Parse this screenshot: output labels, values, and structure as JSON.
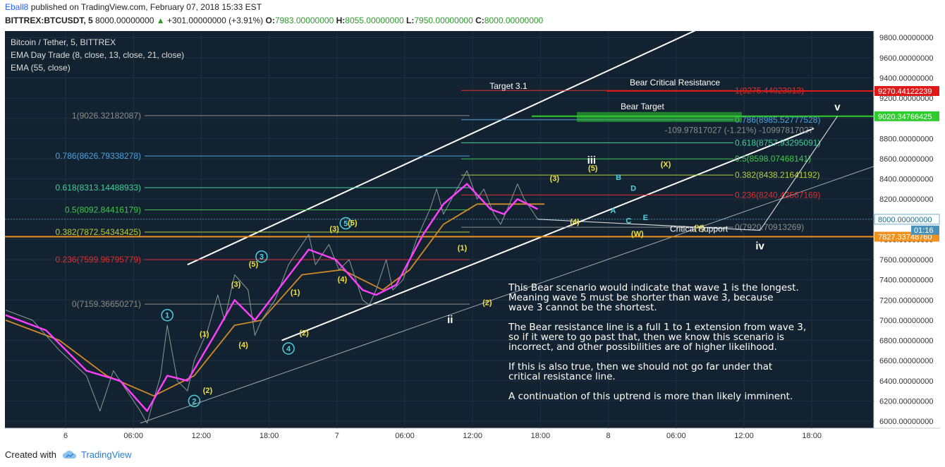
{
  "header": {
    "author": "Eball8",
    "published": "published on TradingView.com, February 07, 2018 15:33 EST",
    "symbol": "BITTREX:BTCUSDT, 5",
    "last": "8000.00000000",
    "change": "+301.00000000 (+3.91%)",
    "o_label": "O:",
    "o": "7983.00000000",
    "h_label": "H:",
    "h": "8055.00000000",
    "l_label": "L:",
    "l": "7950.00000000",
    "c_label": "C:",
    "c": "8000.00000000"
  },
  "legend": {
    "title": "Bitcoin / Tether, 5, BITTREX",
    "ema1": "EMA Day Trade (8, close, 13, close, 21, close)",
    "ema2": "EMA (55, close)"
  },
  "footer": {
    "created_with": "Created with",
    "brand": "TradingView"
  },
  "colors": {
    "background": "#132230",
    "grid": "#1f3142",
    "text": "#d8d8d8",
    "channel": "#ffffff",
    "ema_fast": "#b020c0",
    "ema_mid": "#ff40ff",
    "ema_slow": "#d08a2a",
    "price": "#8a9a9a",
    "resistance": "#e01818",
    "bear_target": "#2ecc2e",
    "support": "#f0921e"
  },
  "notes": {
    "p1": "This Bear scenario would indicate that wave 1 is the longest.\nMeaning wave 5 must be shorter than wave 3, because\nwave 3 cannot be the shortest.",
    "p2": "The Bear resistance line is a full 1 to 1 extension from wave 3,\nso if it were to go past that, then we know this scenario is\nincorrect, and other possibilities are of higher likelihood.",
    "p3": "If this is also true, then we should not go far under that\ncritical resistance line.",
    "p4": "A continuation of this uptrend is more than likely imminent."
  },
  "chart_data": {
    "type": "line",
    "title": "Bitcoin / Tether, 5, BITTREX",
    "ylim": [
      5950,
      9950
    ],
    "y_ticks": [
      "9800.00000000",
      "9600.00000000",
      "9400.00000000",
      "9200.00000000",
      "9000.00000000",
      "8800.00000000",
      "8600.00000000",
      "8400.00000000",
      "8200.00000000",
      "8000.00000000",
      "7800.00000000",
      "7600.00000000",
      "7400.00000000",
      "7200.00000000",
      "7000.00000000",
      "6800.00000000",
      "6600.00000000",
      "6400.00000000",
      "6200.00000000",
      "6000.00000000"
    ],
    "x_ticks": [
      "6",
      "06:00",
      "12:00",
      "18:00",
      "7",
      "06:00",
      "12:00",
      "18:00",
      "8",
      "06:00",
      "12:00",
      "18:00"
    ],
    "grid": true,
    "price_series": [
      {
        "t": 0,
        "p": 7100
      },
      {
        "t": 4,
        "p": 7000
      },
      {
        "t": 8,
        "p": 6700
      },
      {
        "t": 12,
        "p": 6450
      },
      {
        "t": 14,
        "p": 6100
      },
      {
        "t": 16,
        "p": 6500
      },
      {
        "t": 18,
        "p": 6300
      },
      {
        "t": 20,
        "p": 6100
      },
      {
        "t": 21,
        "p": 5980
      },
      {
        "t": 23,
        "p": 6450
      },
      {
        "t": 24,
        "p": 6950
      },
      {
        "t": 25.5,
        "p": 6400
      },
      {
        "t": 27,
        "p": 6300
      },
      {
        "t": 28,
        "p": 6600
      },
      {
        "t": 30,
        "p": 6900
      },
      {
        "t": 31.5,
        "p": 7250
      },
      {
        "t": 32.5,
        "p": 7000
      },
      {
        "t": 34,
        "p": 7450
      },
      {
        "t": 36,
        "p": 7300
      },
      {
        "t": 37,
        "p": 6850
      },
      {
        "t": 38,
        "p": 7000
      },
      {
        "t": 40,
        "p": 7200
      },
      {
        "t": 42,
        "p": 7550
      },
      {
        "t": 44,
        "p": 7750
      },
      {
        "t": 45,
        "p": 7850
      },
      {
        "t": 46,
        "p": 7550
      },
      {
        "t": 48,
        "p": 7750
      },
      {
        "t": 49.5,
        "p": 7500
      },
      {
        "t": 51,
        "p": 7600
      },
      {
        "t": 53,
        "p": 7200
      },
      {
        "t": 54,
        "p": 7150
      },
      {
        "t": 55,
        "p": 7300
      },
      {
        "t": 56.5,
        "p": 7600
      },
      {
        "t": 57.5,
        "p": 7300
      },
      {
        "t": 59,
        "p": 7400
      },
      {
        "t": 61,
        "p": 7800
      },
      {
        "t": 63,
        "p": 8100
      },
      {
        "t": 64,
        "p": 8300
      },
      {
        "t": 65,
        "p": 8050
      },
      {
        "t": 67,
        "p": 8300
      },
      {
        "t": 68.5,
        "p": 8480
      },
      {
        "t": 70,
        "p": 8200
      },
      {
        "t": 71,
        "p": 8300
      },
      {
        "t": 72.5,
        "p": 8050
      },
      {
        "t": 73.5,
        "p": 7950
      },
      {
        "t": 74.5,
        "p": 8100
      },
      {
        "t": 76,
        "p": 8350
      },
      {
        "t": 77,
        "p": 8200
      },
      {
        "t": 78.5,
        "p": 8050
      },
      {
        "t": 79,
        "p": 8000
      }
    ],
    "ema_series": [
      {
        "t": 0,
        "p": 7050
      },
      {
        "t": 6,
        "p": 6900
      },
      {
        "t": 12,
        "p": 6500
      },
      {
        "t": 17,
        "p": 6400
      },
      {
        "t": 21,
        "p": 6100
      },
      {
        "t": 24,
        "p": 6450
      },
      {
        "t": 27,
        "p": 6400
      },
      {
        "t": 31,
        "p": 6850
      },
      {
        "t": 34,
        "p": 7200
      },
      {
        "t": 37,
        "p": 7000
      },
      {
        "t": 41,
        "p": 7350
      },
      {
        "t": 45,
        "p": 7700
      },
      {
        "t": 49,
        "p": 7600
      },
      {
        "t": 53,
        "p": 7300
      },
      {
        "t": 55,
        "p": 7250
      },
      {
        "t": 58,
        "p": 7350
      },
      {
        "t": 62,
        "p": 7850
      },
      {
        "t": 65,
        "p": 8150
      },
      {
        "t": 68.5,
        "p": 8350
      },
      {
        "t": 72,
        "p": 8100
      },
      {
        "t": 74,
        "p": 8050
      },
      {
        "t": 76,
        "p": 8200
      },
      {
        "t": 79,
        "p": 8100
      }
    ],
    "ema_slow_series": [
      {
        "t": 0,
        "p": 7000
      },
      {
        "t": 8,
        "p": 6800
      },
      {
        "t": 15,
        "p": 6450
      },
      {
        "t": 22,
        "p": 6250
      },
      {
        "t": 28,
        "p": 6450
      },
      {
        "t": 34,
        "p": 6950
      },
      {
        "t": 38,
        "p": 7000
      },
      {
        "t": 44,
        "p": 7450
      },
      {
        "t": 50,
        "p": 7500
      },
      {
        "t": 56,
        "p": 7300
      },
      {
        "t": 60,
        "p": 7500
      },
      {
        "t": 65,
        "p": 7950
      },
      {
        "t": 70,
        "p": 8150
      },
      {
        "t": 75,
        "p": 8150
      },
      {
        "t": 80,
        "p": 8150
      }
    ],
    "channel_lines": [
      {
        "name": "upper",
        "from": {
          "t": 27,
          "p": 7550
        },
        "to": {
          "t": 105,
          "p": 9950
        }
      },
      {
        "name": "lower",
        "from": {
          "t": 41,
          "p": 6800
        },
        "to": {
          "t": 120,
          "p": 8900
        }
      },
      {
        "name": "outer",
        "from": {
          "t": 20,
          "p": 5980
        },
        "to": {
          "t": 130,
          "p": 8550
        }
      }
    ],
    "fib_left": [
      {
        "label": "1(9026.32182087)",
        "price": 9026.32,
        "color": "#8d8d8d"
      },
      {
        "label": "0.786(8626.79338278)",
        "price": 8626.79,
        "color": "#4fa3e0"
      },
      {
        "label": "0.618(8313.14488933)",
        "price": 8313.14,
        "color": "#3fcfa0"
      },
      {
        "label": "0.5(8092.84416179)",
        "price": 8092.84,
        "color": "#3fc84e"
      },
      {
        "label": "0.382(7872.54343425)",
        "price": 7872.54,
        "color": "#b8cf3a"
      },
      {
        "label": "0.236(7599.96795779)",
        "price": 7599.97,
        "color": "#e03030"
      },
      {
        "label": "0(7159.36650271)",
        "price": 7159.37,
        "color": "#8d8d8d"
      }
    ],
    "fib_right": [
      {
        "label": "1(9275.44023013)",
        "price": 9275.44,
        "color": "#e03030"
      },
      {
        "label": "0.786(8985.52777528)",
        "price": 8985.53,
        "color": "#4fa3e0"
      },
      {
        "label": "0.618(8757.93295091)",
        "price": 8757.93,
        "color": "#3fcfa0"
      },
      {
        "label": "0.5(8598.07468141)",
        "price": 8598.07,
        "color": "#3fc84e"
      },
      {
        "label": "0.382(8438.21641192)",
        "price": 8438.22,
        "color": "#b8cf3a"
      },
      {
        "label": "0.236(8240.42567169)",
        "price": 8240.43,
        "color": "#e03030"
      },
      {
        "label": "0(7920.70913269)",
        "price": 7920.71,
        "color": "#8d8d8d"
      }
    ],
    "levels": [
      {
        "name": "Bear Critical Resistance",
        "price": 9270.44,
        "tag": "9270.44122239",
        "color": "#e01818"
      },
      {
        "name": "Bear Target",
        "price": 9020.35,
        "tag": "9020.34766425",
        "color": "#2ecc2e"
      },
      {
        "name": "Critical Support",
        "price": 7827.34,
        "tag": "7827.33748760",
        "color": "#f0921e"
      }
    ],
    "current_price": {
      "tag": "8000.00000000",
      "countdown": "01:16",
      "price": 8000
    },
    "annotations": [
      {
        "text": "Target 3.1",
        "t": 75,
        "p": 9290
      },
      {
        "text": "-109.97817027 (-1.21%) -10997817027",
        "t": 101,
        "p": 8855
      }
    ],
    "wave_labels": [
      {
        "text": "1",
        "t": 24,
        "p": 7050,
        "style": "circle"
      },
      {
        "text": "2",
        "t": 28,
        "p": 6200,
        "style": "circle"
      },
      {
        "text": "3",
        "t": 38,
        "p": 7630,
        "style": "circle"
      },
      {
        "text": "4",
        "t": 42,
        "p": 6720,
        "style": "circle"
      },
      {
        "text": "5",
        "t": 50.5,
        "p": 7960,
        "style": "circle"
      },
      {
        "text": "ii",
        "t": 66,
        "p": 6970,
        "style": "roman"
      },
      {
        "text": "iii",
        "t": 87,
        "p": 8550,
        "style": "roman"
      },
      {
        "text": "iv",
        "t": 112,
        "p": 7700,
        "style": "roman"
      },
      {
        "text": "v",
        "t": 123.5,
        "p": 9080,
        "style": "roman"
      },
      {
        "text": "(3)",
        "t": 34.2,
        "p": 7330,
        "style": "paren"
      },
      {
        "text": "(5)",
        "t": 36.8,
        "p": 7530,
        "style": "paren"
      },
      {
        "text": "(1)",
        "t": 29.5,
        "p": 6840,
        "style": "paren"
      },
      {
        "text": "(2)",
        "t": 30,
        "p": 6280,
        "style": "paren"
      },
      {
        "text": "(4)",
        "t": 35.3,
        "p": 6730,
        "style": "paren"
      },
      {
        "text": "(1)",
        "t": 43,
        "p": 7250,
        "style": "paren"
      },
      {
        "text": "(2)",
        "t": 44.3,
        "p": 6850,
        "style": "paren"
      },
      {
        "text": "(3)",
        "t": 48.8,
        "p": 7880,
        "style": "paren"
      },
      {
        "text": "(4)",
        "t": 50,
        "p": 7380,
        "style": "paren"
      },
      {
        "text": "(5)",
        "t": 51.5,
        "p": 7940,
        "style": "paren"
      },
      {
        "text": "(1)",
        "t": 67.8,
        "p": 7690,
        "style": "paren"
      },
      {
        "text": "(2)",
        "t": 71.5,
        "p": 7150,
        "style": "paren"
      },
      {
        "text": "(3)",
        "t": 81.5,
        "p": 8380,
        "style": "paren"
      },
      {
        "text": "(4)",
        "t": 84.5,
        "p": 7950,
        "style": "paren"
      },
      {
        "text": "(5)",
        "t": 87.2,
        "p": 8480,
        "style": "paren"
      },
      {
        "text": "(X)",
        "t": 98,
        "p": 8520,
        "style": "paren"
      },
      {
        "text": "(W)",
        "t": 93.8,
        "p": 7830,
        "style": "paren"
      },
      {
        "text": "(Y)",
        "t": 103,
        "p": 7890,
        "style": "paren"
      },
      {
        "text": "A",
        "t": 90.2,
        "p": 8060,
        "style": "letter"
      },
      {
        "text": "B",
        "t": 91,
        "p": 8390,
        "style": "letter"
      },
      {
        "text": "C",
        "t": 92.5,
        "p": 7960,
        "style": "letter"
      },
      {
        "text": "D",
        "t": 93.2,
        "p": 8280,
        "style": "letter"
      },
      {
        "text": "E",
        "t": 95,
        "p": 7990,
        "style": "letter"
      }
    ]
  }
}
